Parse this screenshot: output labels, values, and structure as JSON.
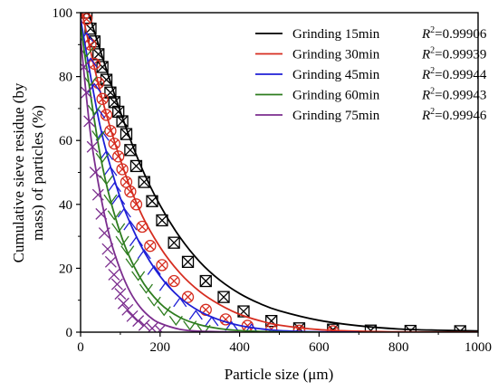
{
  "chart_data": {
    "type": "line",
    "xlabel": "Particle size (μm)",
    "ylabel_line1": "Cumulative sieve residue (by",
    "ylabel_line2": "mass) of particles (%)",
    "xlim": [
      0,
      1000
    ],
    "ylim": [
      0,
      100
    ],
    "xticks": [
      0,
      200,
      400,
      600,
      800,
      1000
    ],
    "yticks": [
      0,
      20,
      40,
      60,
      80,
      100
    ],
    "grid": false,
    "legend_position": "top-right",
    "series": [
      {
        "name": "Grinding 15min",
        "r2_text": "=0.99906",
        "color": "#000000",
        "marker": "boxed-x",
        "points": [
          [
            15,
            100
          ],
          [
            25,
            95
          ],
          [
            35,
            91
          ],
          [
            45,
            87
          ],
          [
            55,
            83
          ],
          [
            65,
            79
          ],
          [
            75,
            75
          ],
          [
            85,
            72
          ],
          [
            95,
            69
          ],
          [
            105,
            66
          ],
          [
            115,
            62
          ],
          [
            125,
            57
          ],
          [
            140,
            52
          ],
          [
            160,
            47
          ],
          [
            180,
            41
          ],
          [
            205,
            35
          ],
          [
            235,
            28
          ],
          [
            270,
            22
          ],
          [
            315,
            16
          ],
          [
            360,
            11
          ],
          [
            410,
            6.5
          ],
          [
            480,
            3.5
          ],
          [
            550,
            1.2
          ],
          [
            635,
            0.8
          ],
          [
            730,
            0.5
          ],
          [
            830,
            0.4
          ],
          [
            955,
            0.3
          ]
        ],
        "fit": [
          [
            0,
            108
          ],
          [
            50,
            88
          ],
          [
            100,
            69
          ],
          [
            150,
            52.5
          ],
          [
            200,
            39.7
          ],
          [
            250,
            29.7
          ],
          [
            300,
            22
          ],
          [
            350,
            16.3
          ],
          [
            400,
            12.1
          ],
          [
            450,
            9
          ],
          [
            500,
            6.7
          ],
          [
            600,
            3.7
          ],
          [
            700,
            2
          ],
          [
            800,
            1
          ],
          [
            900,
            0.6
          ],
          [
            1000,
            0.4
          ]
        ]
      },
      {
        "name": "Grinding 30min",
        "r2_text": "=0.99939",
        "color": "#d62d20",
        "marker": "circle-x",
        "points": [
          [
            15,
            98
          ],
          [
            25,
            90
          ],
          [
            35,
            84
          ],
          [
            45,
            78
          ],
          [
            55,
            73
          ],
          [
            65,
            68
          ],
          [
            75,
            63
          ],
          [
            85,
            59
          ],
          [
            95,
            55
          ],
          [
            105,
            51
          ],
          [
            115,
            47
          ],
          [
            125,
            44
          ],
          [
            140,
            40
          ],
          [
            155,
            33
          ],
          [
            175,
            27
          ],
          [
            205,
            21
          ],
          [
            235,
            16
          ],
          [
            270,
            11
          ],
          [
            315,
            7
          ],
          [
            365,
            4
          ],
          [
            420,
            2
          ],
          [
            480,
            1
          ],
          [
            550,
            0.5
          ],
          [
            635,
            0.3
          ]
        ],
        "fit": [
          [
            0,
            102
          ],
          [
            50,
            75
          ],
          [
            100,
            54
          ],
          [
            150,
            37.8
          ],
          [
            200,
            26.6
          ],
          [
            250,
            18.5
          ],
          [
            300,
            12.7
          ],
          [
            350,
            8.6
          ],
          [
            400,
            5.6
          ],
          [
            450,
            3.6
          ],
          [
            500,
            2.2
          ],
          [
            600,
            0.8
          ],
          [
            700,
            0.3
          ],
          [
            800,
            0.1
          ],
          [
            1000,
            0
          ]
        ]
      },
      {
        "name": "Grinding 45min",
        "r2_text": "=0.99944",
        "color": "#1f1fd6",
        "marker": "triangle",
        "points": [
          [
            15,
            92
          ],
          [
            25,
            84
          ],
          [
            35,
            76
          ],
          [
            45,
            68
          ],
          [
            55,
            61
          ],
          [
            65,
            55
          ],
          [
            75,
            50
          ],
          [
            85,
            45
          ],
          [
            95,
            41
          ],
          [
            110,
            37
          ],
          [
            125,
            33
          ],
          [
            140,
            28
          ],
          [
            160,
            24
          ],
          [
            185,
            19
          ],
          [
            215,
            14
          ],
          [
            250,
            9
          ],
          [
            290,
            5
          ],
          [
            330,
            3
          ],
          [
            380,
            1.5
          ],
          [
            430,
            0.8
          ]
        ],
        "fit": [
          [
            0,
            98
          ],
          [
            50,
            64
          ],
          [
            100,
            42
          ],
          [
            150,
            27.5
          ],
          [
            200,
            17.5
          ],
          [
            250,
            10.8
          ],
          [
            300,
            6.5
          ],
          [
            350,
            3.8
          ],
          [
            400,
            2.1
          ],
          [
            450,
            1.1
          ],
          [
            500,
            0.5
          ],
          [
            600,
            0.1
          ],
          [
            700,
            0
          ]
        ]
      },
      {
        "name": "Grinding 60min",
        "r2_text": "=0.99943",
        "color": "#2e7d1f",
        "marker": "triangle-down",
        "points": [
          [
            15,
            88
          ],
          [
            25,
            79
          ],
          [
            35,
            70
          ],
          [
            45,
            62
          ],
          [
            55,
            55
          ],
          [
            65,
            48
          ],
          [
            75,
            42
          ],
          [
            85,
            37
          ],
          [
            95,
            33
          ],
          [
            105,
            29
          ],
          [
            118,
            26
          ],
          [
            130,
            22
          ],
          [
            145,
            18
          ],
          [
            165,
            14
          ],
          [
            185,
            10
          ],
          [
            210,
            7
          ],
          [
            240,
            4
          ],
          [
            275,
            2.5
          ],
          [
            310,
            1.2
          ]
        ],
        "fit": [
          [
            0,
            96
          ],
          [
            50,
            55
          ],
          [
            100,
            31
          ],
          [
            150,
            17
          ],
          [
            200,
            9
          ],
          [
            250,
            4.6
          ],
          [
            300,
            2.3
          ],
          [
            350,
            1.1
          ],
          [
            400,
            0.5
          ],
          [
            500,
            0.1
          ],
          [
            600,
            0
          ]
        ]
      },
      {
        "name": "Grinding 75min",
        "r2_text": "=0.99946",
        "color": "#7b2d8e",
        "marker": "x",
        "points": [
          [
            8,
            83
          ],
          [
            15,
            75
          ],
          [
            22,
            66
          ],
          [
            30,
            58
          ],
          [
            37,
            50
          ],
          [
            44,
            43
          ],
          [
            52,
            37
          ],
          [
            60,
            31
          ],
          [
            68,
            26
          ],
          [
            76,
            22
          ],
          [
            84,
            18
          ],
          [
            92,
            15
          ],
          [
            100,
            12
          ],
          [
            108,
            9
          ],
          [
            118,
            7
          ],
          [
            130,
            5
          ],
          [
            145,
            3.5
          ],
          [
            160,
            2.2
          ],
          [
            180,
            1.2
          ],
          [
            200,
            0.6
          ]
        ],
        "fit": [
          [
            0,
            92
          ],
          [
            25,
            62
          ],
          [
            50,
            43
          ],
          [
            75,
            29
          ],
          [
            100,
            19.5
          ],
          [
            125,
            12.5
          ],
          [
            150,
            7.8
          ],
          [
            175,
            4.7
          ],
          [
            200,
            2.8
          ],
          [
            250,
            0.9
          ],
          [
            300,
            0.3
          ],
          [
            400,
            0
          ]
        ]
      }
    ]
  }
}
